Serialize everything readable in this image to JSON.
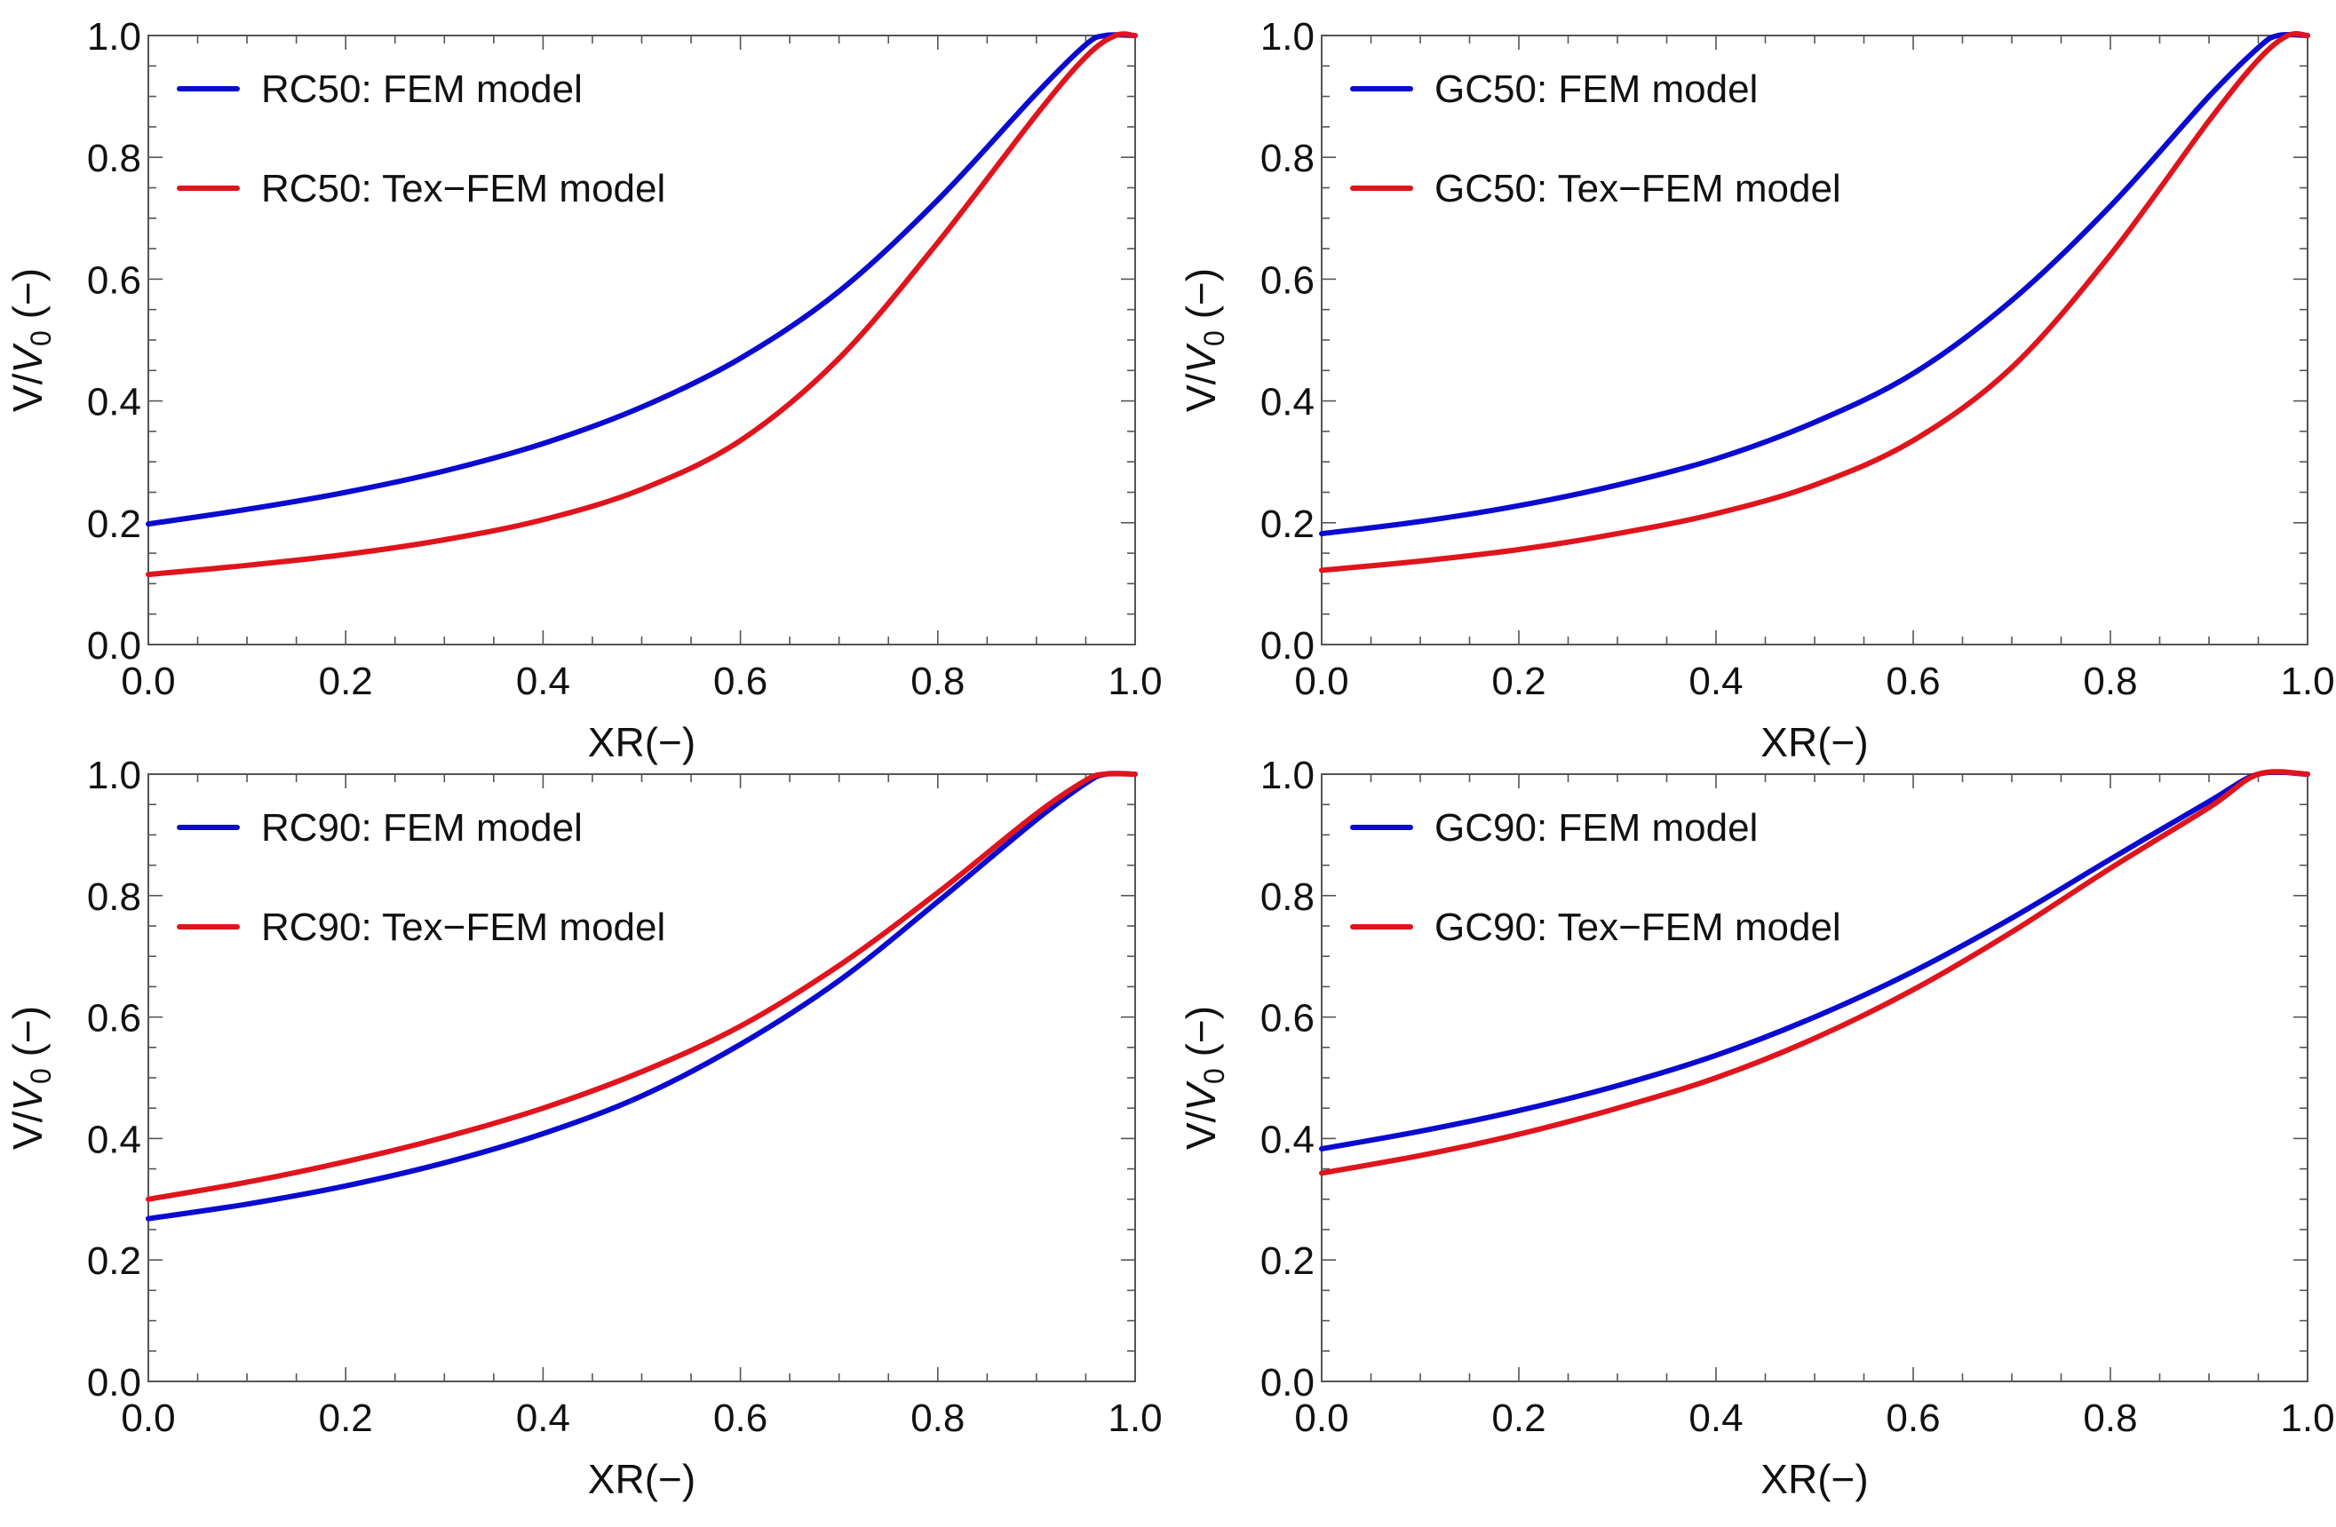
{
  "colors": {
    "fem": "#0a0ad0",
    "tex": "#e0141c",
    "axis": "#555555"
  },
  "chart_data": [
    {
      "type": "line",
      "xlabel": "XR(−)",
      "ylabel_main": "V/",
      "ylabel_italic": "V",
      "ylabel_sub": "0",
      "ylabel_tail": " (−)",
      "xlim": [
        0,
        1
      ],
      "ylim": [
        0,
        1
      ],
      "xticks": [
        "0.0",
        "0.2",
        "0.4",
        "0.6",
        "0.8",
        "1.0"
      ],
      "yticks": [
        "0.0",
        "0.2",
        "0.4",
        "0.6",
        "0.8",
        "1.0"
      ],
      "grid": false,
      "legend": "top-left",
      "series": [
        {
          "name": "RC50: FEM model",
          "color": "blue",
          "x": [
            0,
            0.1,
            0.2,
            0.3,
            0.4,
            0.5,
            0.6,
            0.7,
            0.8,
            0.9,
            0.95,
            0.97,
            1.0
          ],
          "y": [
            0.198,
            0.222,
            0.25,
            0.285,
            0.33,
            0.39,
            0.47,
            0.58,
            0.73,
            0.905,
            0.985,
            1.0,
            1.0
          ]
        },
        {
          "name": "RC50: Tex−FEM model",
          "color": "red",
          "x": [
            0,
            0.1,
            0.2,
            0.3,
            0.4,
            0.5,
            0.6,
            0.7,
            0.8,
            0.9,
            0.95,
            0.98,
            1.0
          ],
          "y": [
            0.115,
            0.13,
            0.148,
            0.172,
            0.205,
            0.255,
            0.335,
            0.47,
            0.66,
            0.87,
            0.965,
            1.0,
            1.0
          ]
        }
      ]
    },
    {
      "type": "line",
      "xlabel": "XR(−)",
      "ylabel_main": "V/",
      "ylabel_italic": "V",
      "ylabel_sub": "0",
      "ylabel_tail": " (−)",
      "xlim": [
        0,
        1
      ],
      "ylim": [
        0,
        1
      ],
      "xticks": [
        "0.0",
        "0.2",
        "0.4",
        "0.6",
        "0.8",
        "1.0"
      ],
      "yticks": [
        "0.0",
        "0.2",
        "0.4",
        "0.6",
        "0.8",
        "1.0"
      ],
      "grid": false,
      "legend": "top-left",
      "series": [
        {
          "name": "GC50: FEM model",
          "color": "blue",
          "x": [
            0,
            0.1,
            0.2,
            0.3,
            0.4,
            0.5,
            0.6,
            0.7,
            0.8,
            0.9,
            0.95,
            0.97,
            1.0
          ],
          "y": [
            0.182,
            0.202,
            0.228,
            0.262,
            0.305,
            0.365,
            0.445,
            0.565,
            0.72,
            0.9,
            0.98,
            1.0,
            1.0
          ]
        },
        {
          "name": "GC50: Tex−FEM model",
          "color": "red",
          "x": [
            0,
            0.1,
            0.2,
            0.3,
            0.4,
            0.5,
            0.6,
            0.7,
            0.8,
            0.9,
            0.95,
            0.98,
            1.0
          ],
          "y": [
            0.122,
            0.137,
            0.156,
            0.182,
            0.215,
            0.262,
            0.335,
            0.455,
            0.64,
            0.86,
            0.96,
            1.0,
            1.0
          ]
        }
      ]
    },
    {
      "type": "line",
      "xlabel": "XR(−)",
      "ylabel_main": "V/",
      "ylabel_italic": "V",
      "ylabel_sub": "0",
      "ylabel_tail": " (−)",
      "xlim": [
        0,
        1
      ],
      "ylim": [
        0,
        1
      ],
      "xticks": [
        "0.0",
        "0.2",
        "0.4",
        "0.6",
        "0.8",
        "1.0"
      ],
      "yticks": [
        "0.0",
        "0.2",
        "0.4",
        "0.6",
        "0.8",
        "1.0"
      ],
      "grid": false,
      "legend": "top-left",
      "series": [
        {
          "name": "RC90: FEM model",
          "color": "blue",
          "x": [
            0,
            0.1,
            0.2,
            0.3,
            0.4,
            0.5,
            0.6,
            0.7,
            0.8,
            0.9,
            0.95,
            0.97,
            1.0
          ],
          "y": [
            0.268,
            0.292,
            0.322,
            0.36,
            0.408,
            0.47,
            0.555,
            0.66,
            0.79,
            0.925,
            0.985,
            1.0,
            1.0
          ]
        },
        {
          "name": "RC90: Tex−FEM model",
          "color": "red",
          "x": [
            0,
            0.1,
            0.2,
            0.3,
            0.4,
            0.5,
            0.6,
            0.7,
            0.8,
            0.9,
            0.95,
            0.97,
            1.0
          ],
          "y": [
            0.3,
            0.328,
            0.362,
            0.402,
            0.45,
            0.51,
            0.585,
            0.685,
            0.805,
            0.935,
            0.99,
            1.0,
            1.0
          ]
        }
      ]
    },
    {
      "type": "line",
      "xlabel": "XR(−)",
      "ylabel_main": "V/",
      "ylabel_italic": "V",
      "ylabel_sub": "0",
      "ylabel_tail": " (−)",
      "xlim": [
        0,
        1
      ],
      "ylim": [
        0,
        1
      ],
      "xticks": [
        "0.0",
        "0.2",
        "0.4",
        "0.6",
        "0.8",
        "1.0"
      ],
      "yticks": [
        "0.0",
        "0.2",
        "0.4",
        "0.6",
        "0.8",
        "1.0"
      ],
      "grid": false,
      "legend": "top-left",
      "series": [
        {
          "name": "GC90: FEM model",
          "color": "blue",
          "x": [
            0,
            0.1,
            0.2,
            0.3,
            0.4,
            0.5,
            0.6,
            0.7,
            0.8,
            0.9,
            0.95,
            1.0
          ],
          "y": [
            0.383,
            0.412,
            0.446,
            0.487,
            0.537,
            0.6,
            0.675,
            0.763,
            0.86,
            0.955,
            1.0,
            1.0
          ]
        },
        {
          "name": "GC90: Tex−FEM model",
          "color": "red",
          "x": [
            0,
            0.1,
            0.2,
            0.3,
            0.4,
            0.5,
            0.6,
            0.7,
            0.8,
            0.9,
            0.95,
            1.0
          ],
          "y": [
            0.343,
            0.372,
            0.407,
            0.45,
            0.5,
            0.565,
            0.645,
            0.74,
            0.845,
            0.945,
            1.0,
            1.0
          ]
        }
      ]
    }
  ]
}
